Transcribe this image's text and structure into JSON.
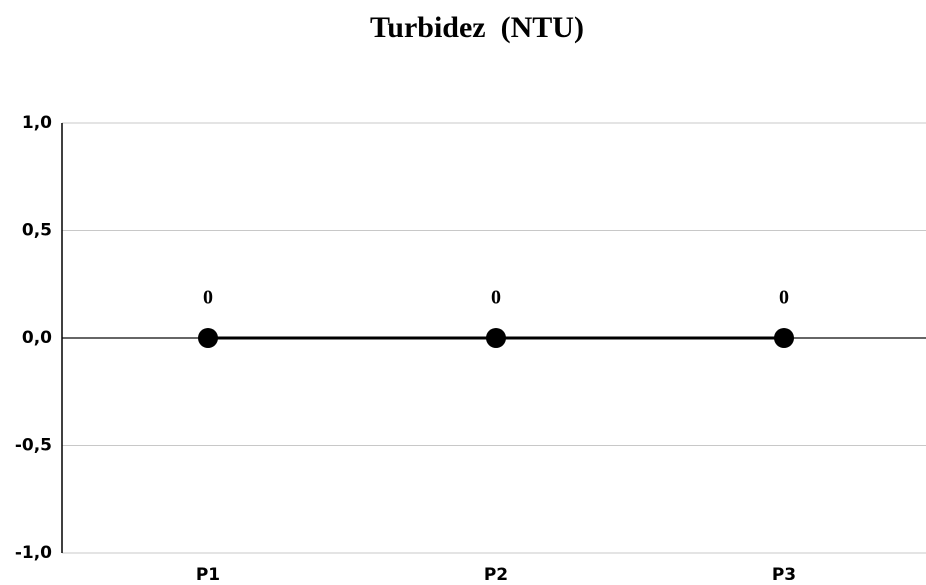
{
  "chart_data": {
    "type": "line",
    "title": "Turbidez  (NTU)",
    "categories": [
      "P1",
      "P2",
      "P3"
    ],
    "values": [
      0,
      0,
      0
    ],
    "color": "#000000",
    "ylim": [
      -1,
      1
    ],
    "yticks": [
      {
        "value": -1,
        "label": "-1,0"
      },
      {
        "value": -0.5,
        "label": "-0,5"
      },
      {
        "value": 0,
        "label": "0,0"
      },
      {
        "value": 0.5,
        "label": "0,5"
      },
      {
        "value": 1,
        "label": "1,0"
      }
    ],
    "grid": true
  }
}
